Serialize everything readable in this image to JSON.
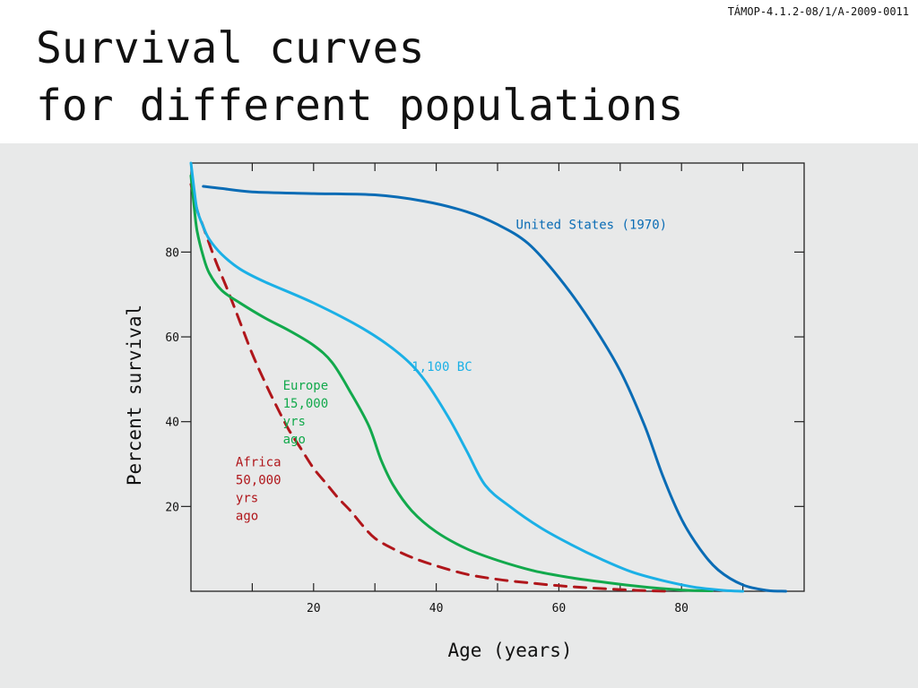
{
  "header": {
    "code": "TÁMOP-4.1.2-08/1/A-2009-0011",
    "title_lines": [
      "Survival curves",
      "for different populations"
    ]
  },
  "colors": {
    "us": "#0a6cb5",
    "bc": "#1bb0e6",
    "europe": "#12a94c",
    "africa": "#b0161b",
    "panel": "#e8e9e9",
    "axis": "#222222"
  },
  "chart_data": {
    "type": "line",
    "title": "Survival curves for different populations",
    "xlabel": "Age (years)",
    "ylabel": "Percent survival",
    "xlim": [
      0,
      100
    ],
    "ylim": [
      0,
      101
    ],
    "xticks": [
      20,
      40,
      60,
      80
    ],
    "yticks": [
      20,
      40,
      60,
      80
    ],
    "grid": false,
    "legend": "inline labels",
    "series": [
      {
        "name": "United States (1970)",
        "key": "us",
        "style": "solid",
        "points": [
          [
            2,
            95.5
          ],
          [
            5,
            95
          ],
          [
            10,
            94.2
          ],
          [
            20,
            93.8
          ],
          [
            30,
            93.5
          ],
          [
            38,
            92
          ],
          [
            45,
            89.5
          ],
          [
            50,
            86.5
          ],
          [
            55,
            82
          ],
          [
            60,
            74
          ],
          [
            65,
            64
          ],
          [
            70,
            52
          ],
          [
            74,
            39
          ],
          [
            77,
            27
          ],
          [
            80,
            17
          ],
          [
            83,
            10
          ],
          [
            86,
            5
          ],
          [
            90,
            1.5
          ],
          [
            94,
            0.2
          ],
          [
            97,
            0
          ]
        ]
      },
      {
        "name": "1,100 BC",
        "key": "bc",
        "style": "solid",
        "points": [
          [
            0,
            101
          ],
          [
            0.5,
            95
          ],
          [
            1,
            90
          ],
          [
            2,
            86
          ],
          [
            3,
            83
          ],
          [
            5,
            79.5
          ],
          [
            8,
            76
          ],
          [
            12,
            73
          ],
          [
            20,
            68
          ],
          [
            28,
            62
          ],
          [
            34,
            56
          ],
          [
            38,
            50
          ],
          [
            42,
            41
          ],
          [
            45,
            33
          ],
          [
            48,
            25
          ],
          [
            52,
            20
          ],
          [
            57,
            15
          ],
          [
            62,
            11
          ],
          [
            67,
            7.5
          ],
          [
            72,
            4.5
          ],
          [
            77,
            2.5
          ],
          [
            82,
            1
          ],
          [
            87,
            0.2
          ],
          [
            90,
            0
          ]
        ]
      },
      {
        "name": "Europe 15,000 yrs ago",
        "key": "europe",
        "style": "solid",
        "points": [
          [
            0,
            98
          ],
          [
            0.5,
            91
          ],
          [
            1,
            85
          ],
          [
            2,
            79
          ],
          [
            3,
            75
          ],
          [
            5,
            71
          ],
          [
            8,
            68
          ],
          [
            12,
            64.5
          ],
          [
            16,
            61.5
          ],
          [
            20,
            58
          ],
          [
            23,
            54
          ],
          [
            26,
            47
          ],
          [
            29,
            39
          ],
          [
            31,
            31
          ],
          [
            33,
            25
          ],
          [
            36,
            19
          ],
          [
            40,
            14
          ],
          [
            45,
            10
          ],
          [
            50,
            7.3
          ],
          [
            56,
            4.8
          ],
          [
            62,
            3.2
          ],
          [
            68,
            2
          ],
          [
            74,
            1
          ],
          [
            80,
            0.3
          ],
          [
            85,
            0.1
          ]
        ]
      },
      {
        "name": "Africa 50,000 yrs ago",
        "key": "africa",
        "style": "dashed",
        "points": [
          [
            0,
            96
          ],
          [
            1,
            90
          ],
          [
            2,
            86
          ],
          [
            4,
            78
          ],
          [
            6,
            71
          ],
          [
            8,
            63.5
          ],
          [
            10,
            56
          ],
          [
            12,
            49.5
          ],
          [
            14,
            43.5
          ],
          [
            16,
            38
          ],
          [
            18,
            33.5
          ],
          [
            20,
            29
          ],
          [
            22,
            25.5
          ],
          [
            24,
            22
          ],
          [
            26,
            19
          ],
          [
            28,
            15.5
          ],
          [
            30,
            12.5
          ],
          [
            33,
            10
          ],
          [
            36,
            8
          ],
          [
            40,
            6
          ],
          [
            45,
            4
          ],
          [
            50,
            2.8
          ],
          [
            55,
            2
          ],
          [
            60,
            1.3
          ],
          [
            65,
            0.8
          ],
          [
            70,
            0.4
          ],
          [
            74,
            0.15
          ],
          [
            78,
            0
          ]
        ]
      }
    ],
    "annotations": [
      {
        "key": "us",
        "lines": [
          "United States (1970)"
        ],
        "x": 53,
        "y": 85.5
      },
      {
        "key": "bc",
        "lines": [
          "1,100 BC"
        ],
        "x": 36,
        "y": 52
      },
      {
        "key": "europe",
        "lines": [
          "Europe",
          "15,000",
          "yrs",
          "ago"
        ],
        "x": 15,
        "y": 47.5
      },
      {
        "key": "africa",
        "lines": [
          "Africa",
          "50,000",
          "yrs",
          "ago"
        ],
        "x": 7.3,
        "y": 29.5
      }
    ]
  }
}
